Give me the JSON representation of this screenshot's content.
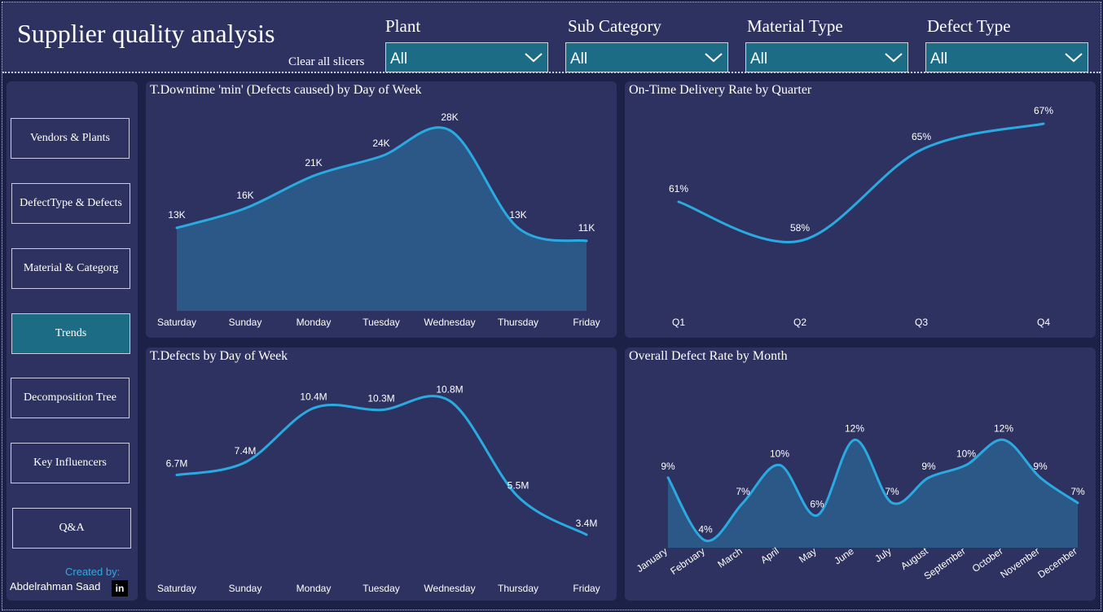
{
  "header": {
    "title": "Supplier quality analysis",
    "clear_label": "Clear all slicers",
    "slicers": [
      {
        "label": "Plant",
        "value": "All"
      },
      {
        "label": "Sub Category",
        "value": "All"
      },
      {
        "label": "Material Type",
        "value": "All"
      },
      {
        "label": "Defect Type",
        "value": "All"
      }
    ]
  },
  "nav": {
    "items": [
      {
        "label": "Vendors & Plants",
        "active": false
      },
      {
        "label": "DefectType & Defects",
        "active": false
      },
      {
        "label": "Material & Categorg",
        "active": false
      },
      {
        "label": "Trends",
        "active": true
      },
      {
        "label": "Decomposition Tree",
        "active": false
      },
      {
        "label": "Key Influencers",
        "active": false
      },
      {
        "label": "Q&A",
        "active": false
      }
    ],
    "created_by": "Created by:",
    "author": "Abdelrahman Saad",
    "linkedin_icon": "linkedin-icon"
  },
  "colors": {
    "background": "#1c2147",
    "card": "#2e3260",
    "accent": "#1d6c86",
    "line": "#29abe2",
    "area": "#2a5f8e"
  },
  "chart_data": [
    {
      "type": "area",
      "title": "T.Downtime 'min' (Defects caused) by Day of Week",
      "categories": [
        "Saturday",
        "Sunday",
        "Monday",
        "Tuesday",
        "Wednesday",
        "Thursday",
        "Friday"
      ],
      "values": [
        13000,
        16000,
        21000,
        24000,
        28000,
        13000,
        11000
      ],
      "labels": [
        "13K",
        "16K",
        "21K",
        "24K",
        "28K",
        "13K",
        "11K"
      ],
      "ylim": [
        0,
        30000
      ],
      "grid": false
    },
    {
      "type": "line",
      "title": "On-Time Delivery Rate by Quarter",
      "categories": [
        "Q1",
        "Q2",
        "Q3",
        "Q4"
      ],
      "values": [
        0.61,
        0.58,
        0.65,
        0.67
      ],
      "labels": [
        "61%",
        "58%",
        "65%",
        "67%"
      ],
      "ylim": [
        0.55,
        0.68
      ],
      "grid": false
    },
    {
      "type": "line",
      "title": "T.Defects by Day of Week",
      "categories": [
        "Saturday",
        "Sunday",
        "Monday",
        "Tuesday",
        "Wednesday",
        "Thursday",
        "Friday"
      ],
      "values": [
        6700000,
        7400000,
        10400000,
        10300000,
        10800000,
        5500000,
        3400000
      ],
      "labels": [
        "6.7M",
        "7.4M",
        "10.4M",
        "10.3M",
        "10.8M",
        "5.5M",
        "3.4M"
      ],
      "ylim": [
        2500000,
        11500000
      ],
      "grid": false
    },
    {
      "type": "area",
      "title": "Overall Defect Rate by Month",
      "categories": [
        "January",
        "February",
        "March",
        "April",
        "May",
        "June",
        "July",
        "August",
        "September",
        "October",
        "November",
        "December"
      ],
      "values": [
        0.09,
        0.04,
        0.07,
        0.1,
        0.06,
        0.12,
        0.07,
        0.09,
        0.1,
        0.12,
        0.09,
        0.07
      ],
      "labels": [
        "9%",
        "4%",
        "7%",
        "10%",
        "6%",
        "12%",
        "7%",
        "9%",
        "10%",
        "12%",
        "9%",
        "7%"
      ],
      "ylim": [
        0.035,
        0.13
      ],
      "grid": false
    }
  ]
}
